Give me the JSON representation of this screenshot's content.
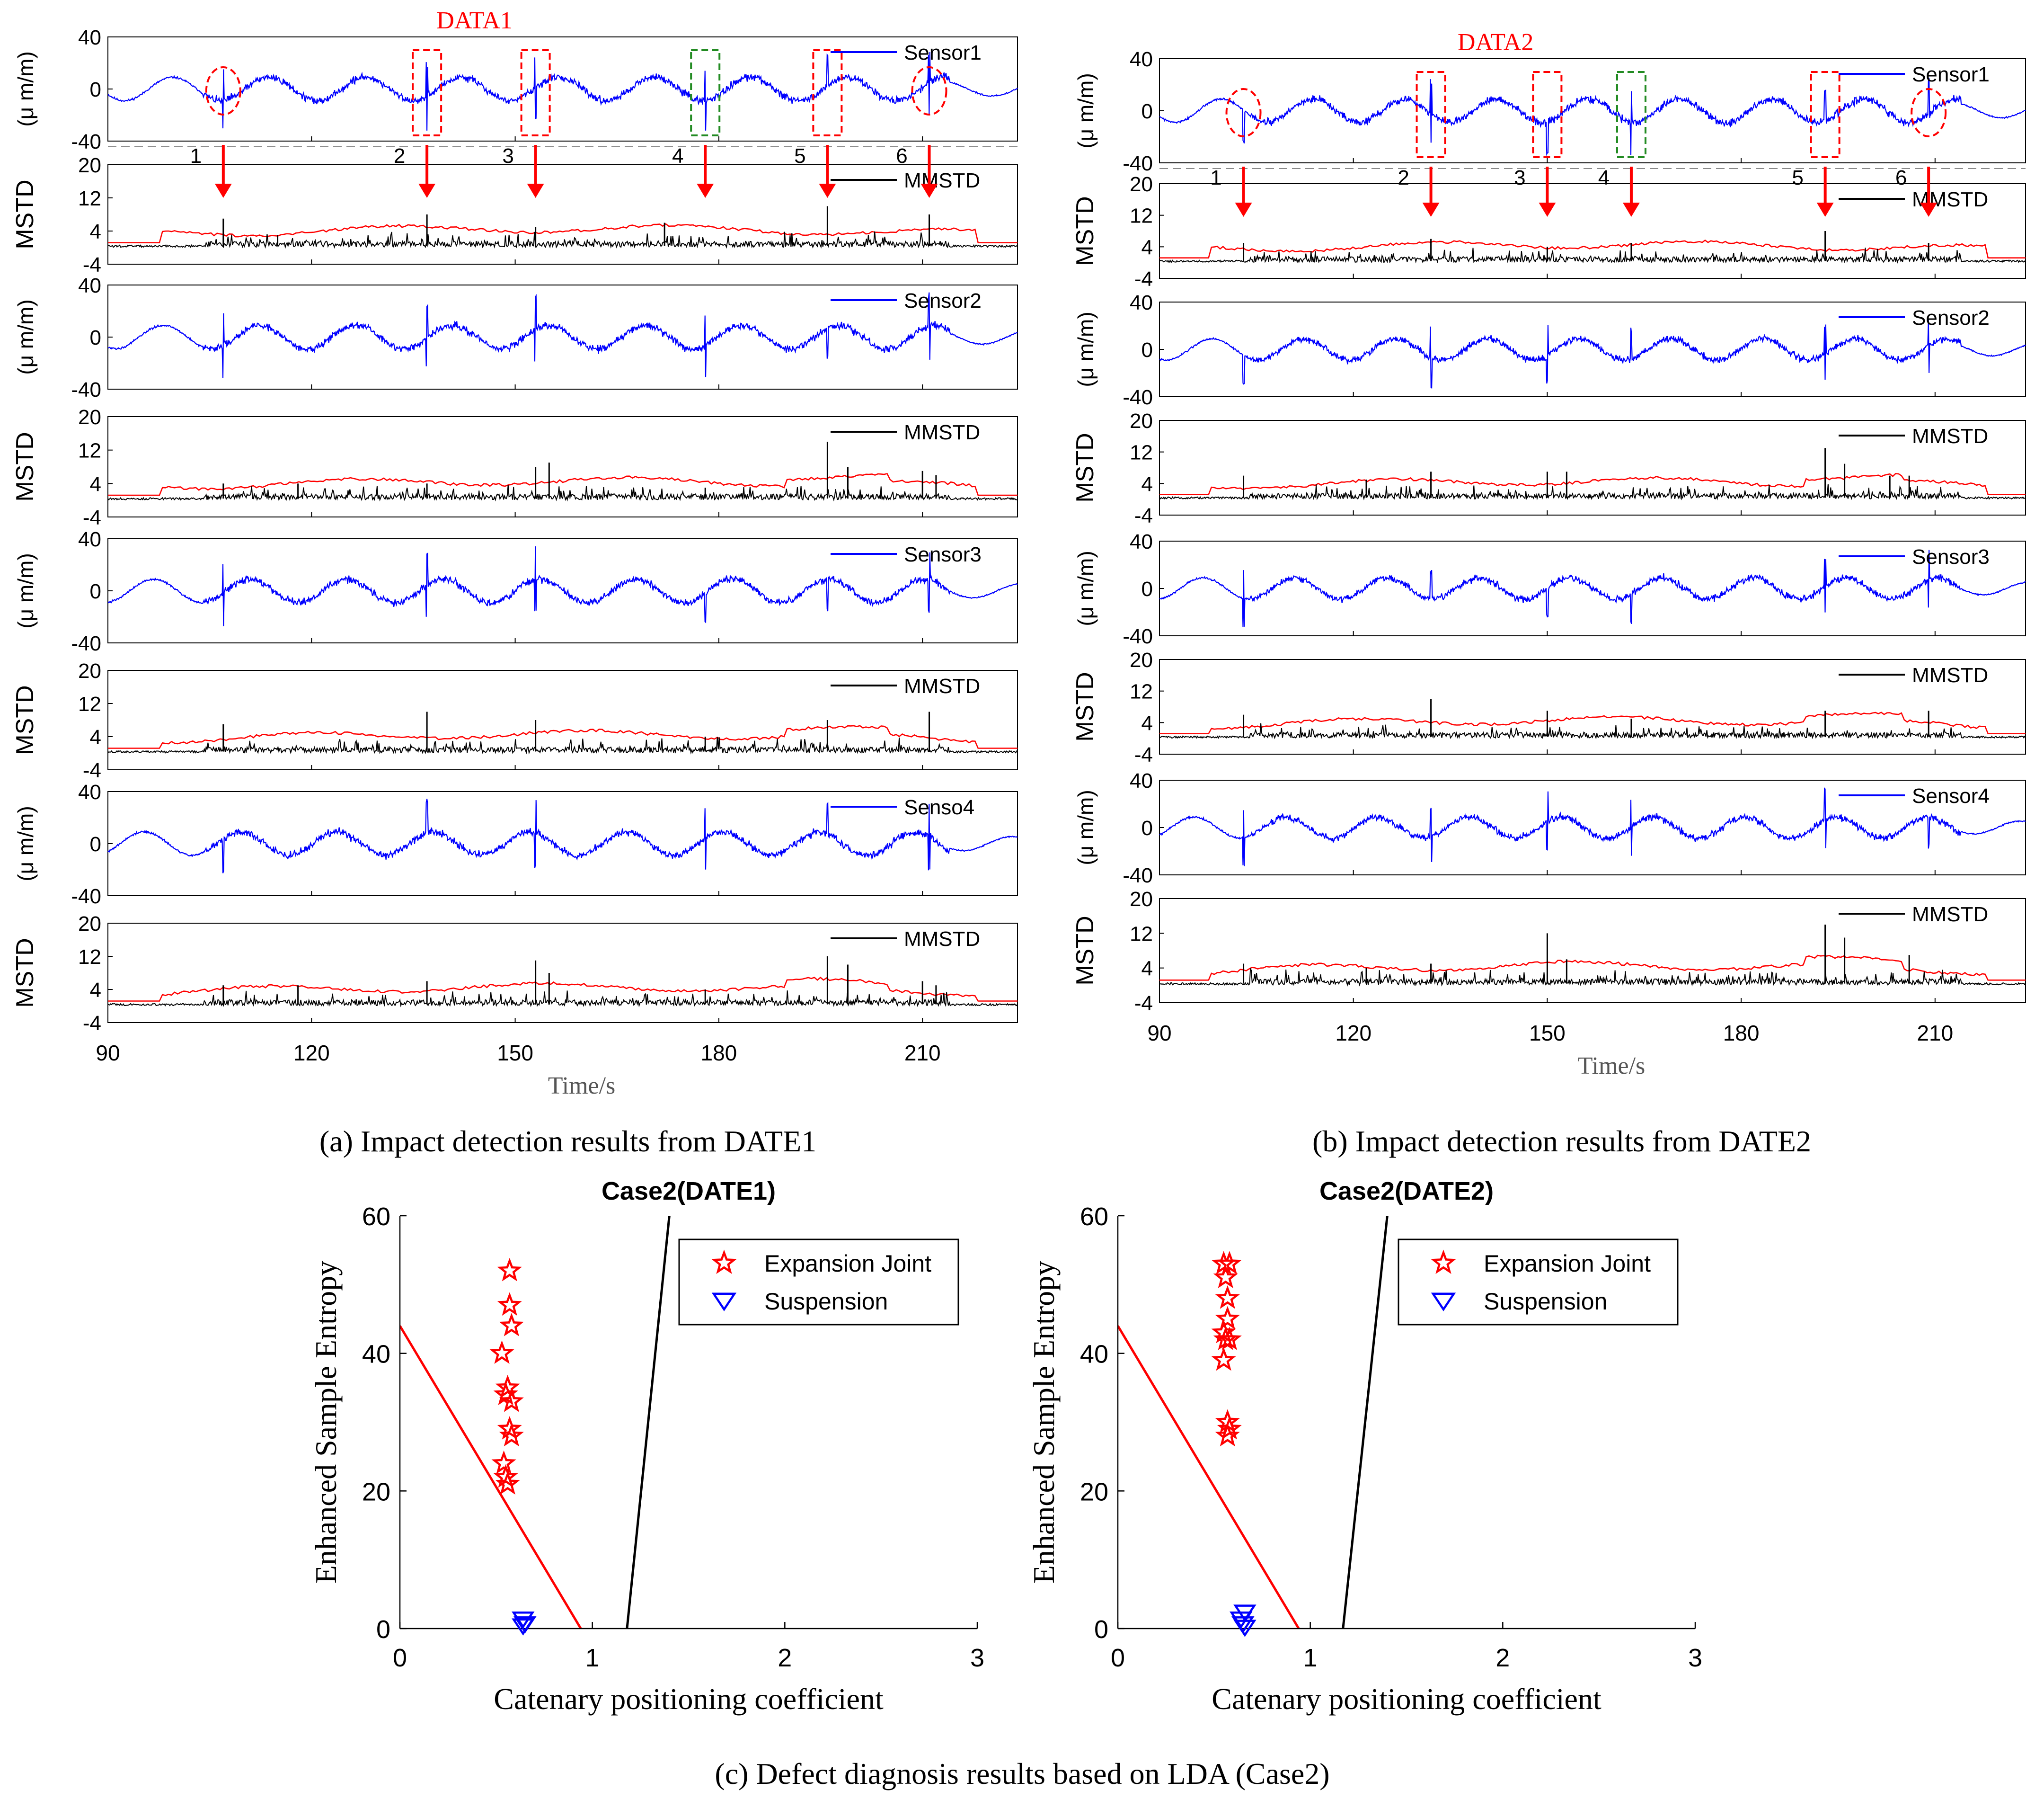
{
  "panel_a": {
    "title": "DATA1",
    "caption_letter": "(a)",
    "caption": "Impact detection results from DATE1",
    "xlabel": "Time/s",
    "xticks": [
      "90",
      "120",
      "150",
      "180",
      "210"
    ],
    "strain_ylabel": "(μ m/m)",
    "mstd_ylabel": "MSTD",
    "strain_yticks": [
      "40",
      "0",
      "-40"
    ],
    "mstd_yticks": [
      "20",
      "12",
      "4",
      "-4"
    ],
    "sensor_legends": [
      "Sensor1",
      "Sensor2",
      "Sensor3",
      "Senso4"
    ],
    "mstd_legend": "MMSTD",
    "segment_labels": [
      "1",
      "2",
      "3",
      "4",
      "5",
      "6"
    ]
  },
  "panel_b": {
    "title": "DATA2",
    "caption_letter": "(b)",
    "caption": "Impact detection results from DATE2",
    "xlabel": "Time/s",
    "xticks": [
      "90",
      "120",
      "150",
      "180",
      "210"
    ],
    "strain_ylabel": "(μ m/m)",
    "mstd_ylabel": "MSTD",
    "strain_yticks": [
      "40",
      "0",
      "-40"
    ],
    "mstd_yticks": [
      "20",
      "12",
      "4",
      "-4"
    ],
    "sensor_legends": [
      "Sensor1",
      "Sensor2",
      "Sensor3",
      "Sensor4"
    ],
    "mstd_legend": "MMSTD",
    "segment_labels": [
      "1",
      "2",
      "3",
      "4",
      "5",
      "6"
    ]
  },
  "panel_c": {
    "caption_letter": "(c)",
    "caption": "Defect diagnosis results based on LDA (Case2)",
    "xlabel": "Catenary positioning coefficient",
    "ylabel": "Enhanced Sample Entropy",
    "xticks": [
      "0",
      "1",
      "2",
      "3"
    ],
    "yticks": [
      "0",
      "20",
      "40",
      "60"
    ],
    "legend_expansion": "Expansion Joint",
    "legend_suspension": "Suspension",
    "left_title": "Case2(DATE1)",
    "right_title": "Case2(DATE2)"
  },
  "colors": {
    "strain": "#0000ff",
    "mstd": "#000000",
    "threshold": "#ff0000",
    "marker_red": "#ff0000",
    "marker_green": "#228b22",
    "suspension": "#0000ff"
  },
  "chart_data": [
    {
      "id": "a",
      "type": "line",
      "title": "DATA1",
      "xlabel": "Time/s",
      "xlim": [
        90,
        224
      ],
      "strain_ylim": [
        -40,
        40
      ],
      "mstd_ylim": [
        -4,
        20
      ],
      "series": [
        "Sensor1",
        "MMSTD",
        "Sensor2",
        "MMSTD",
        "Sensor3",
        "MMSTD",
        "Senso4",
        "MMSTD"
      ],
      "impact_times": [
        107,
        137,
        153,
        178,
        196,
        211
      ],
      "impact_styles": [
        "circle",
        "rect",
        "rect",
        "green",
        "rect",
        "circle"
      ],
      "spikes": [
        [
          [
            107,
            7
          ],
          [
            115,
            3
          ],
          [
            137,
            8
          ],
          [
            153,
            5
          ],
          [
            172,
            6
          ],
          [
            196,
            10
          ],
          [
            211,
            8
          ]
        ],
        [
          [
            107,
            4
          ],
          [
            118,
            4
          ],
          [
            137,
            4
          ],
          [
            153,
            8
          ],
          [
            155,
            9
          ],
          [
            178,
            3
          ],
          [
            196,
            14
          ],
          [
            199,
            8
          ],
          [
            210,
            7
          ],
          [
            212,
            6
          ]
        ],
        [
          [
            107,
            7
          ],
          [
            137,
            10
          ],
          [
            153,
            8
          ],
          [
            178,
            4
          ],
          [
            196,
            8
          ],
          [
            211,
            10
          ]
        ],
        [
          [
            107,
            5
          ],
          [
            118,
            5
          ],
          [
            137,
            6
          ],
          [
            153,
            11
          ],
          [
            155,
            8
          ],
          [
            178,
            4
          ],
          [
            196,
            12
          ],
          [
            199,
            10
          ],
          [
            210,
            6
          ],
          [
            212,
            5
          ]
        ]
      ]
    },
    {
      "id": "b",
      "type": "line",
      "title": "DATA2",
      "xlabel": "Time/s",
      "xlim": [
        90,
        224
      ],
      "strain_ylim": [
        -40,
        40
      ],
      "mstd_ylim": [
        -4,
        20
      ],
      "series": [
        "Sensor1",
        "MMSTD",
        "Sensor2",
        "MMSTD",
        "Sensor3",
        "MMSTD",
        "Sensor4",
        "MMSTD"
      ],
      "impact_times": [
        103,
        132,
        150,
        163,
        193,
        209
      ],
      "impact_styles": [
        "circle",
        "rect",
        "rect",
        "green",
        "rect",
        "circle"
      ],
      "spikes": [
        [
          [
            103,
            5
          ],
          [
            132,
            6
          ],
          [
            150,
            4
          ],
          [
            163,
            5
          ],
          [
            193,
            8
          ],
          [
            209,
            5
          ]
        ],
        [
          [
            103,
            6
          ],
          [
            122,
            5
          ],
          [
            132,
            7
          ],
          [
            150,
            7
          ],
          [
            153,
            7
          ],
          [
            193,
            13
          ],
          [
            196,
            9
          ],
          [
            203,
            6
          ],
          [
            206,
            6
          ]
        ],
        [
          [
            103,
            6
          ],
          [
            132,
            10
          ],
          [
            150,
            7
          ],
          [
            163,
            5
          ],
          [
            193,
            7
          ],
          [
            209,
            7
          ]
        ],
        [
          [
            103,
            5
          ],
          [
            122,
            4
          ],
          [
            132,
            5
          ],
          [
            150,
            12
          ],
          [
            153,
            6
          ],
          [
            193,
            14
          ],
          [
            196,
            11
          ],
          [
            206,
            7
          ]
        ]
      ]
    },
    {
      "id": "c1",
      "type": "scatter",
      "title": "Case2(DATE1)",
      "xlabel": "Catenary positioning coefficient",
      "ylabel": "Enhanced Sample Entropy",
      "xlim": [
        0,
        3
      ],
      "ylim": [
        0,
        60
      ],
      "series": [
        {
          "name": "Expansion Joint",
          "marker": "star",
          "points": [
            [
              0.57,
              52
            ],
            [
              0.57,
              47
            ],
            [
              0.58,
              44
            ],
            [
              0.53,
              40
            ],
            [
              0.56,
              35
            ],
            [
              0.55,
              34
            ],
            [
              0.58,
              33
            ],
            [
              0.57,
              29
            ],
            [
              0.58,
              28
            ],
            [
              0.54,
              24
            ],
            [
              0.55,
              22
            ],
            [
              0.56,
              21
            ]
          ]
        },
        {
          "name": "Suspension",
          "marker": "triangle-down",
          "points": [
            [
              0.64,
              1.5
            ],
            [
              0.65,
              0.8
            ],
            [
              0.64,
              0.5
            ]
          ]
        }
      ],
      "boundaries": [
        {
          "color": "#ff0000",
          "from": [
            0,
            44
          ],
          "to": [
            0.94,
            0
          ]
        },
        {
          "color": "#000000",
          "from": [
            1.18,
            0
          ],
          "to": [
            1.4,
            60
          ]
        }
      ]
    },
    {
      "id": "c2",
      "type": "scatter",
      "title": "Case2(DATE2)",
      "xlabel": "Catenary positioning coefficient",
      "ylabel": "Enhanced Sample Entropy",
      "xlim": [
        0,
        3
      ],
      "ylim": [
        0,
        60
      ],
      "series": [
        {
          "name": "Expansion Joint",
          "marker": "star",
          "points": [
            [
              0.55,
              53
            ],
            [
              0.58,
              53
            ],
            [
              0.56,
              51
            ],
            [
              0.57,
              48
            ],
            [
              0.57,
              45
            ],
            [
              0.55,
              43
            ],
            [
              0.58,
              42
            ],
            [
              0.56,
              42
            ],
            [
              0.55,
              39
            ],
            [
              0.57,
              30
            ],
            [
              0.58,
              29
            ],
            [
              0.57,
              28
            ]
          ]
        },
        {
          "name": "Suspension",
          "marker": "triangle-down",
          "points": [
            [
              0.66,
              2.5
            ],
            [
              0.64,
              1.5
            ],
            [
              0.65,
              0.8
            ],
            [
              0.66,
              0.3
            ]
          ]
        }
      ],
      "boundaries": [
        {
          "color": "#ff0000",
          "from": [
            0,
            44
          ],
          "to": [
            0.94,
            0
          ]
        },
        {
          "color": "#000000",
          "from": [
            1.17,
            0
          ],
          "to": [
            1.4,
            60
          ]
        }
      ]
    }
  ]
}
